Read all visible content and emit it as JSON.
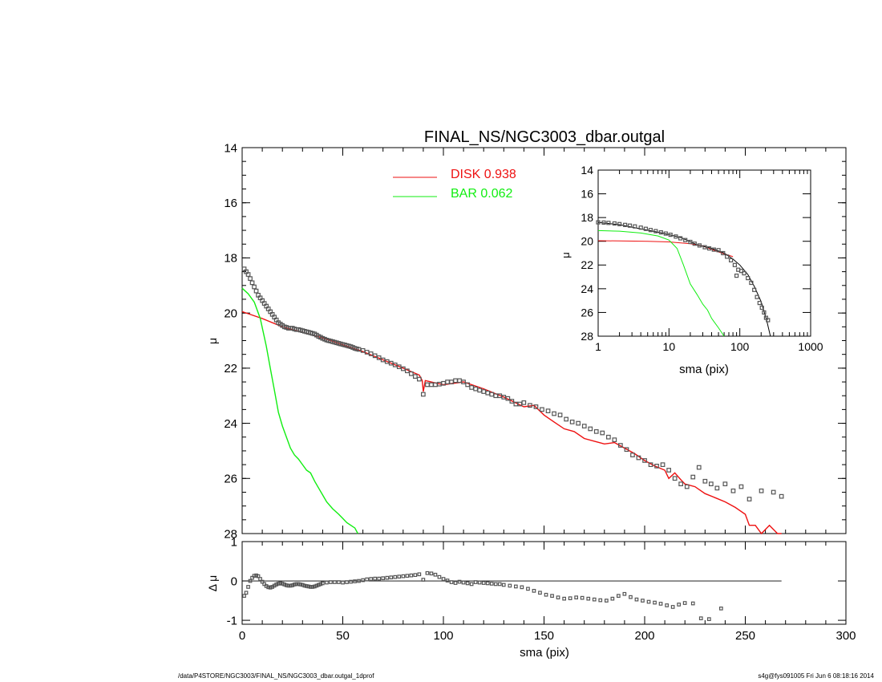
{
  "title": "FINAL_NS/NGC3003_dbar.outgal",
  "footer": {
    "left": "/data/P4STORE/NGC3003/FINAL_NS/NGC3003_dbar.outgal_1dprof",
    "right": "s4g@fys091005  Fri Jun  6 08:18:16 2014"
  },
  "legend": [
    {
      "label": "DISK  0.938",
      "color": "#ee1111"
    },
    {
      "label": "BAR  0.062",
      "color": "#11ee11"
    }
  ],
  "colors": {
    "disk": "#ee1111",
    "bar": "#11ee11",
    "data": "#555555",
    "axes": "#000000"
  },
  "chart_data": [
    {
      "name": "main",
      "type": "line",
      "xlabel": "sma (pix)",
      "ylabel": "μ",
      "xlim": [
        0,
        300
      ],
      "ylim": [
        28,
        14
      ],
      "xticks": [
        0,
        50,
        100,
        150,
        200,
        250,
        300
      ],
      "yticks": [
        14,
        16,
        18,
        20,
        22,
        24,
        26,
        28
      ],
      "series": [
        {
          "name": "DISK  0.938",
          "kind": "line",
          "color": "#ee1111",
          "x": [
            0,
            10,
            20,
            25,
            30,
            40,
            50,
            60,
            70,
            80,
            88,
            89.5,
            90,
            91,
            100,
            110,
            120,
            130,
            140,
            145,
            150,
            155,
            160,
            165,
            170,
            175,
            180,
            185,
            190,
            195,
            200,
            205,
            210,
            212,
            215,
            218,
            220,
            225,
            230,
            235,
            240,
            245,
            250,
            252,
            255,
            258,
            262,
            266,
            268
          ],
          "y": [
            19.95,
            20.2,
            20.5,
            20.6,
            20.7,
            20.9,
            21.15,
            21.4,
            21.7,
            22.0,
            22.25,
            22.45,
            22.85,
            22.45,
            22.6,
            22.5,
            22.75,
            23.05,
            23.4,
            23.35,
            23.7,
            23.95,
            24.2,
            24.3,
            24.55,
            24.65,
            24.75,
            24.7,
            24.9,
            25.1,
            25.35,
            25.55,
            25.7,
            26.0,
            25.8,
            26.05,
            26.2,
            26.3,
            26.55,
            26.7,
            26.85,
            27.05,
            27.3,
            27.7,
            27.7,
            28.0,
            27.7,
            28.0,
            28.1
          ]
        },
        {
          "name": "BAR  0.062",
          "kind": "line",
          "color": "#11ee11",
          "x": [
            0,
            3,
            6,
            9,
            12,
            14,
            16,
            18,
            20,
            22,
            24,
            26,
            28,
            30,
            32,
            34,
            36,
            38,
            40,
            42,
            45,
            48,
            50,
            52,
            54,
            56,
            57.5
          ],
          "y": [
            19.1,
            19.3,
            19.6,
            20.2,
            21.2,
            22.0,
            22.8,
            23.6,
            24.1,
            24.5,
            24.9,
            25.15,
            25.3,
            25.5,
            25.7,
            25.8,
            26.1,
            26.35,
            26.6,
            26.85,
            27.1,
            27.3,
            27.45,
            27.6,
            27.7,
            27.8,
            28.0
          ]
        },
        {
          "name": "data",
          "kind": "points",
          "color": "#555555",
          "x": [
            1,
            2,
            3,
            4,
            5,
            6,
            7,
            8,
            9,
            10,
            11,
            12,
            13,
            14,
            15,
            16,
            17,
            18,
            19,
            20,
            21,
            22,
            23,
            24,
            25,
            26,
            27,
            28,
            29,
            30,
            31,
            32,
            33,
            34,
            35,
            36,
            37,
            38,
            39,
            40,
            41,
            42,
            43,
            44,
            45,
            46,
            47,
            48,
            49,
            50,
            51,
            52,
            53,
            54,
            55,
            56,
            57,
            58,
            60,
            62,
            64,
            66,
            68,
            70,
            72,
            74,
            76,
            78,
            80,
            82,
            84,
            86,
            88,
            90,
            92,
            94,
            96,
            98,
            100,
            102,
            104,
            106,
            108,
            110,
            112,
            114,
            116,
            118,
            120,
            122,
            124,
            126,
            128,
            130,
            132,
            134,
            136,
            138,
            140,
            143,
            146,
            149,
            152,
            155,
            158,
            161,
            164,
            167,
            170,
            173,
            176,
            179,
            182,
            185,
            188,
            191,
            194,
            197,
            200,
            203,
            206,
            209,
            212,
            215,
            218,
            221,
            224,
            227,
            230,
            233,
            236,
            240,
            244,
            248,
            252,
            258,
            264,
            268
          ],
          "y": [
            18.4,
            18.5,
            18.6,
            18.75,
            18.9,
            19.05,
            19.2,
            19.35,
            19.45,
            19.55,
            19.65,
            19.75,
            19.85,
            19.95,
            20.05,
            20.15,
            20.25,
            20.35,
            20.4,
            20.45,
            20.5,
            20.52,
            20.55,
            20.55,
            20.55,
            20.58,
            20.6,
            20.6,
            20.62,
            20.64,
            20.66,
            20.68,
            20.7,
            20.72,
            20.74,
            20.76,
            20.8,
            20.85,
            20.88,
            20.92,
            20.95,
            20.98,
            21.0,
            21.02,
            21.04,
            21.06,
            21.08,
            21.1,
            21.12,
            21.14,
            21.16,
            21.18,
            21.2,
            21.22,
            21.25,
            21.28,
            21.3,
            21.32,
            21.36,
            21.42,
            21.48,
            21.55,
            21.62,
            21.7,
            21.76,
            21.82,
            21.88,
            21.95,
            22.02,
            22.1,
            22.2,
            22.3,
            22.4,
            22.95,
            22.6,
            22.6,
            22.6,
            22.58,
            22.55,
            22.5,
            22.5,
            22.45,
            22.45,
            22.5,
            22.6,
            22.7,
            22.75,
            22.8,
            22.85,
            22.9,
            22.95,
            23.0,
            23.0,
            23.05,
            23.1,
            23.2,
            23.3,
            23.3,
            23.25,
            23.35,
            23.4,
            23.5,
            23.55,
            23.65,
            23.7,
            23.85,
            23.95,
            24.0,
            24.1,
            24.2,
            24.3,
            24.35,
            24.5,
            24.6,
            24.8,
            24.95,
            25.15,
            25.25,
            25.35,
            25.5,
            25.55,
            25.5,
            25.7,
            26.0,
            26.2,
            26.3,
            25.95,
            25.6,
            26.1,
            26.2,
            26.35,
            26.2,
            26.45,
            26.3,
            26.75,
            26.45,
            26.5,
            26.65
          ]
        }
      ]
    },
    {
      "name": "residual",
      "type": "scatter",
      "xlabel": "sma (pix)",
      "ylabel": "Δ μ",
      "xlim": [
        0,
        300
      ],
      "ylim": [
        -1.1,
        1
      ],
      "yticks": [
        -1,
        0,
        1
      ],
      "zero_line_to": 268,
      "series": [
        {
          "name": "residual",
          "kind": "points",
          "color": "#555555",
          "x": [
            1,
            2,
            3,
            4,
            5,
            6,
            7,
            8,
            9,
            10,
            11,
            12,
            13,
            14,
            15,
            16,
            17,
            18,
            19,
            20,
            21,
            22,
            23,
            24,
            25,
            26,
            27,
            28,
            29,
            30,
            31,
            32,
            33,
            34,
            35,
            36,
            37,
            38,
            39,
            40,
            42,
            44,
            46,
            48,
            50,
            52,
            54,
            56,
            58,
            60,
            62,
            64,
            66,
            68,
            70,
            72,
            74,
            76,
            78,
            80,
            82,
            84,
            86,
            88,
            90,
            92,
            94,
            96,
            98,
            100,
            102,
            104,
            106,
            108,
            110,
            112,
            114,
            116,
            118,
            120,
            122,
            124,
            126,
            128,
            130,
            133,
            136,
            139,
            142,
            145,
            148,
            151,
            154,
            157,
            160,
            163,
            166,
            169,
            172,
            175,
            178,
            181,
            184,
            187,
            190,
            193,
            196,
            199,
            202,
            205,
            208,
            211,
            214,
            217,
            220,
            224,
            228,
            232,
            238
          ],
          "y": [
            -0.38,
            -0.3,
            -0.15,
            0.0,
            0.08,
            0.13,
            0.14,
            0.12,
            0.05,
            -0.02,
            -0.08,
            -0.13,
            -0.16,
            -0.17,
            -0.15,
            -0.12,
            -0.09,
            -0.07,
            -0.06,
            -0.07,
            -0.09,
            -0.11,
            -0.12,
            -0.12,
            -0.11,
            -0.09,
            -0.08,
            -0.08,
            -0.09,
            -0.1,
            -0.12,
            -0.13,
            -0.14,
            -0.15,
            -0.15,
            -0.14,
            -0.12,
            -0.1,
            -0.08,
            -0.06,
            -0.04,
            -0.03,
            -0.03,
            -0.03,
            -0.04,
            -0.03,
            -0.02,
            -0.01,
            0.0,
            0.02,
            0.04,
            0.05,
            0.06,
            0.06,
            0.07,
            0.08,
            0.09,
            0.1,
            0.11,
            0.12,
            0.13,
            0.14,
            0.15,
            0.17,
            0.03,
            0.2,
            0.19,
            0.16,
            0.1,
            0.05,
            0.01,
            -0.03,
            -0.05,
            -0.02,
            -0.04,
            -0.06,
            -0.08,
            -0.03,
            -0.04,
            -0.05,
            -0.06,
            -0.07,
            -0.08,
            -0.08,
            -0.1,
            -0.12,
            -0.14,
            -0.16,
            -0.2,
            -0.25,
            -0.3,
            -0.35,
            -0.38,
            -0.42,
            -0.45,
            -0.44,
            -0.42,
            -0.43,
            -0.45,
            -0.47,
            -0.49,
            -0.5,
            -0.45,
            -0.38,
            -0.33,
            -0.41,
            -0.47,
            -0.5,
            -0.53,
            -0.55,
            -0.58,
            -0.62,
            -0.66,
            -0.6,
            -0.56,
            -0.57,
            -0.95,
            -0.97,
            -0.7
          ]
        }
      ]
    },
    {
      "name": "inset",
      "type": "line",
      "xlabel": "sma (pix)",
      "ylabel": "μ",
      "xscale": "log",
      "xlim": [
        1,
        1000
      ],
      "ylim": [
        28,
        14
      ],
      "xticks": [
        1,
        10,
        100,
        1000
      ],
      "yticks": [
        14,
        16,
        18,
        20,
        22,
        24,
        26,
        28
      ],
      "series": [
        {
          "name": "disk",
          "kind": "line",
          "color": "#ee1111",
          "x": [
            1,
            2,
            5,
            10,
            20,
            30,
            50,
            80
          ],
          "y": [
            19.95,
            19.97,
            20.0,
            20.05,
            20.2,
            20.4,
            20.9,
            21.3
          ]
        },
        {
          "name": "bar",
          "kind": "line",
          "color": "#11ee11",
          "x": [
            1,
            2,
            4,
            7,
            10,
            13,
            16,
            20,
            25,
            30,
            35,
            40,
            50,
            60
          ],
          "y": [
            19.1,
            19.15,
            19.3,
            19.55,
            19.9,
            20.6,
            22.0,
            23.6,
            24.5,
            25.3,
            25.8,
            26.5,
            27.3,
            28.0
          ]
        },
        {
          "name": "total",
          "kind": "line",
          "color": "#000000",
          "x": [
            1,
            2,
            4,
            8,
            15,
            25,
            40,
            60,
            80,
            100,
            130,
            160,
            200,
            240,
            270
          ],
          "y": [
            18.4,
            18.6,
            18.95,
            19.3,
            19.7,
            20.3,
            20.6,
            21.0,
            21.5,
            22.0,
            22.8,
            23.8,
            25.1,
            26.7,
            28.0
          ]
        },
        {
          "name": "data",
          "kind": "points",
          "color": "#555555",
          "x": [
            1,
            1.2,
            1.4,
            1.7,
            2,
            2.4,
            2.8,
            3.3,
            4,
            4.7,
            5.5,
            6.5,
            7.7,
            9,
            10.5,
            12.5,
            14.5,
            17,
            20,
            23,
            27,
            32,
            37,
            43,
            50,
            58,
            66,
            75,
            85,
            90,
            95,
            105,
            115,
            130,
            145,
            160,
            175,
            190,
            205,
            220,
            235,
            250
          ],
          "y": [
            18.4,
            18.42,
            18.45,
            18.5,
            18.55,
            18.62,
            18.68,
            18.75,
            18.85,
            18.95,
            19.05,
            19.15,
            19.25,
            19.35,
            19.45,
            19.6,
            19.75,
            19.9,
            20.05,
            20.2,
            20.35,
            20.5,
            20.6,
            20.7,
            20.75,
            21.0,
            21.3,
            21.6,
            22.0,
            22.9,
            22.4,
            22.5,
            22.7,
            23.1,
            23.5,
            24.1,
            24.7,
            25.2,
            25.6,
            26.0,
            26.45,
            26.65
          ]
        }
      ]
    }
  ]
}
